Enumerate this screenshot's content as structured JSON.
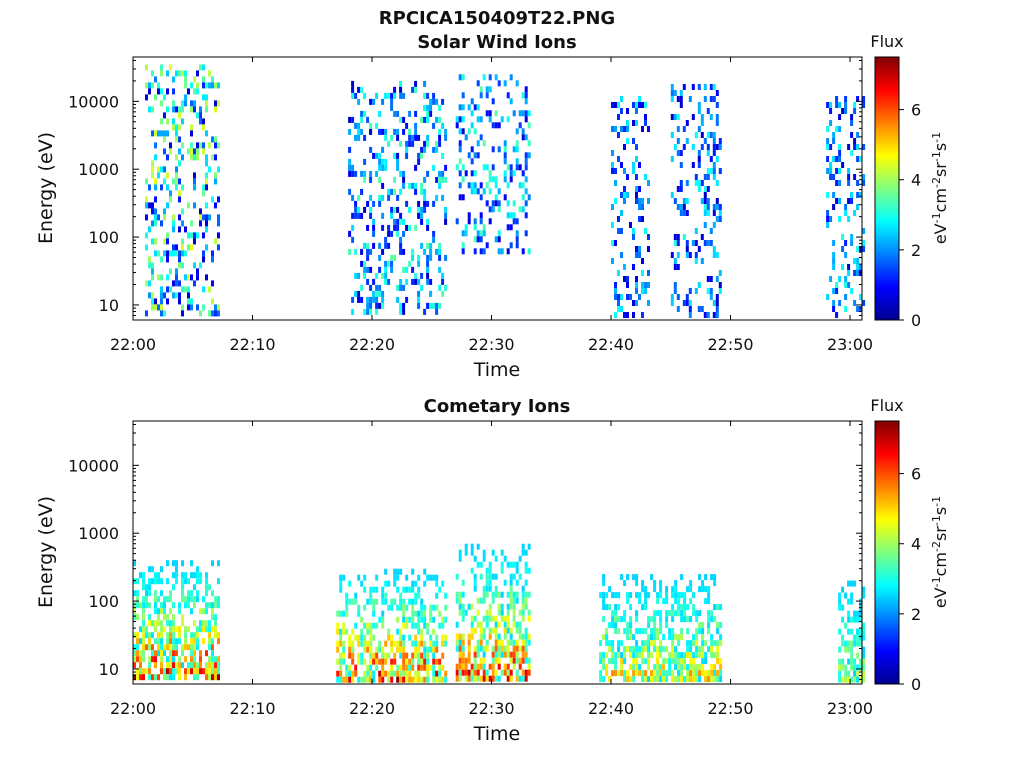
{
  "figure": {
    "suptitle": "RPCICA150409T22.PNG"
  },
  "chart_data": [
    {
      "type": "heatmap",
      "title": "Solar Wind Ions",
      "xlabel": "Time",
      "ylabel": "Energy (eV)",
      "x_ticks": [
        "22:00",
        "22:10",
        "22:20",
        "22:30",
        "22:40",
        "22:50",
        "23:00"
      ],
      "x_range": [
        "22:00",
        "23:01"
      ],
      "y_scale": "log",
      "y_ticks": [
        "10",
        "100",
        "1000",
        "10000"
      ],
      "y_range": [
        6,
        45000
      ],
      "colorbar": {
        "label": "Flux",
        "unit": "eV-1cm-2sr-1s-1",
        "ticks": [
          "0",
          "2",
          "4",
          "6"
        ],
        "range": [
          0,
          7.5
        ],
        "colormap": "jet"
      },
      "bursts": [
        {
          "t_start": "22:01",
          "t_end": "22:07",
          "e_min": 8,
          "e_max": 35000,
          "flux_min": 0.5,
          "flux_max": 4.5
        },
        {
          "t_start": "22:18",
          "t_end": "22:26",
          "e_min": 8,
          "e_max": 20000,
          "flux_min": 0.5,
          "flux_max": 3.5
        },
        {
          "t_start": "22:27",
          "t_end": "22:33",
          "e_min": 60,
          "e_max": 25000,
          "flux_min": 0.5,
          "flux_max": 3.5
        },
        {
          "t_start": "22:40",
          "t_end": "22:43",
          "e_min": 7,
          "e_max": 12000,
          "flux_min": 0.5,
          "flux_max": 3.0
        },
        {
          "t_start": "22:45",
          "t_end": "22:49",
          "e_min": 7,
          "e_max": 18000,
          "flux_min": 0.5,
          "flux_max": 3.0
        },
        {
          "t_start": "22:58",
          "t_end": "23:01",
          "e_min": 7,
          "e_max": 12000,
          "flux_min": 0.5,
          "flux_max": 3.0
        }
      ]
    },
    {
      "type": "heatmap",
      "title": "Cometary Ions",
      "xlabel": "Time",
      "ylabel": "Energy (eV)",
      "x_ticks": [
        "22:00",
        "22:10",
        "22:20",
        "22:30",
        "22:40",
        "22:50",
        "23:00"
      ],
      "x_range": [
        "22:00",
        "23:01"
      ],
      "y_scale": "log",
      "y_ticks": [
        "10",
        "100",
        "1000",
        "10000"
      ],
      "y_range": [
        6,
        45000
      ],
      "colorbar": {
        "label": "Flux",
        "unit": "eV-1cm-2sr-1s-1",
        "ticks": [
          "0",
          "2",
          "4",
          "6"
        ],
        "range": [
          0,
          7.5
        ],
        "colormap": "jet"
      },
      "bursts": [
        {
          "t_start": "22:00",
          "t_end": "22:07",
          "e_min": 7,
          "e_max": 400,
          "flux_min": 2.5,
          "flux_max": 7.2
        },
        {
          "t_start": "22:17",
          "t_end": "22:26",
          "e_min": 7,
          "e_max": 300,
          "flux_min": 2.5,
          "flux_max": 7.0
        },
        {
          "t_start": "22:27",
          "t_end": "22:33",
          "e_min": 7,
          "e_max": 700,
          "flux_min": 2.5,
          "flux_max": 6.8
        },
        {
          "t_start": "22:39",
          "t_end": "22:49",
          "e_min": 7,
          "e_max": 250,
          "flux_min": 2.5,
          "flux_max": 5.5
        },
        {
          "t_start": "22:59",
          "t_end": "23:01",
          "e_min": 7,
          "e_max": 200,
          "flux_min": 2.5,
          "flux_max": 4.5
        }
      ]
    }
  ]
}
